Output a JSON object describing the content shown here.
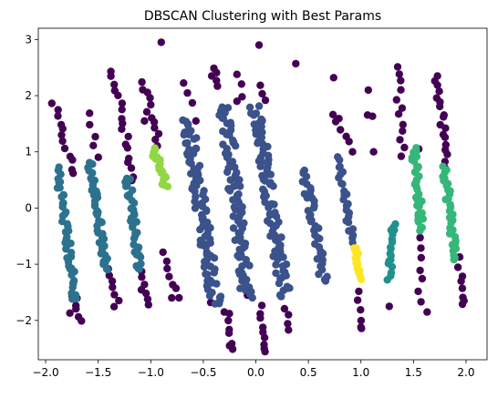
{
  "chart_data": {
    "type": "scatter",
    "title": "DBSCAN Clustering with Best Params",
    "xlabel": "",
    "ylabel": "",
    "xlim": [
      -2.07,
      2.2
    ],
    "ylim": [
      -2.7,
      3.2
    ],
    "xticks": [
      -2.0,
      -1.5,
      -1.0,
      -0.5,
      0.0,
      0.5,
      1.0,
      1.5,
      2.0
    ],
    "xtick_labels": [
      "−2.0",
      "−1.5",
      "−1.0",
      "−0.5",
      "0.0",
      "0.5",
      "1.0",
      "1.5",
      "2.0"
    ],
    "yticks": [
      -2,
      -1,
      0,
      1,
      2,
      3
    ],
    "ytick_labels": [
      "−2",
      "−1",
      "0",
      "1",
      "2",
      "3"
    ],
    "grid": false,
    "legend": false,
    "colormap": "viridis",
    "colors": {
      "noise": "#440154",
      "cluster_purple": "#3b528b",
      "cluster_teal": "#2c728e",
      "cluster_teal_light": "#21918c",
      "cluster_green": "#35b779",
      "cluster_lime": "#90d743",
      "cluster_yellow": "#fde725"
    },
    "series": [
      {
        "color": "#440154",
        "stripes": [
          {
            "x_top": -1.93,
            "x_bottom": -1.73,
            "y_top": 1.85,
            "y_bottom": 0.6,
            "n": 12,
            "jitter": 0.03
          },
          {
            "x_top": -1.74,
            "x_bottom": -1.66,
            "y_top": -1.55,
            "y_bottom": -2.0,
            "n": 6,
            "jitter": 0.03
          },
          {
            "x_top": -1.58,
            "x_bottom": -1.52,
            "y_top": 1.65,
            "y_bottom": 0.9,
            "n": 5,
            "jitter": 0.03
          },
          {
            "x_top": -1.38,
            "x_bottom": -1.32,
            "y_top": -1.1,
            "y_bottom": -1.75,
            "n": 7,
            "jitter": 0.03
          },
          {
            "x_top": -1.35,
            "x_bottom": -1.18,
            "y_top": 2.45,
            "y_bottom": 0.45,
            "n": 18,
            "jitter": 0.04
          },
          {
            "x_top": -1.12,
            "x_bottom": -1.04,
            "y_top": -1.05,
            "y_bottom": -1.7,
            "n": 8,
            "jitter": 0.03
          },
          {
            "x_top": -1.08,
            "x_bottom": -0.92,
            "y_top": 2.25,
            "y_bottom": 1.1,
            "n": 12,
            "jitter": 0.03
          },
          {
            "x_top": -0.88,
            "x_bottom": -0.75,
            "y_top": -0.8,
            "y_bottom": -1.6,
            "n": 7,
            "jitter": 0.03
          },
          {
            "x_top": -0.68,
            "x_bottom": -0.62,
            "y_top": 2.2,
            "y_bottom": 1.9,
            "n": 3,
            "jitter": 0.02
          },
          {
            "x_top": -0.38,
            "x_bottom": -0.35,
            "y_top": 2.5,
            "y_bottom": 2.2,
            "n": 4,
            "jitter": 0.02
          },
          {
            "x_top": -0.26,
            "x_bottom": -0.24,
            "y_top": -1.9,
            "y_bottom": -2.5,
            "n": 6,
            "jitter": 0.02
          },
          {
            "x_top": -0.17,
            "x_bottom": -0.14,
            "y_top": 2.4,
            "y_bottom": 2.0,
            "n": 3,
            "jitter": 0.02
          },
          {
            "x_top": 0.03,
            "x_bottom": 0.09,
            "y_top": 2.2,
            "y_bottom": 1.9,
            "n": 3,
            "jitter": 0.02
          },
          {
            "x_top": 0.05,
            "x_bottom": 0.09,
            "y_top": -1.75,
            "y_bottom": -2.55,
            "n": 8,
            "jitter": 0.02
          },
          {
            "x_top": 0.28,
            "x_bottom": 0.32,
            "y_top": -1.8,
            "y_bottom": -2.2,
            "n": 4,
            "jitter": 0.02
          },
          {
            "x_top": 0.74,
            "x_bottom": 0.86,
            "y_top": 1.7,
            "y_bottom": 1.2,
            "n": 6,
            "jitter": 0.03
          },
          {
            "x_top": 0.96,
            "x_bottom": 1.0,
            "y_top": -1.5,
            "y_bottom": -2.15,
            "n": 5,
            "jitter": 0.02
          },
          {
            "x_top": 1.08,
            "x_bottom": 1.1,
            "y_top": 1.65,
            "y_bottom": 1.6,
            "n": 2,
            "jitter": 0.02
          },
          {
            "x_top": 1.34,
            "x_bottom": 1.4,
            "y_top": 2.55,
            "y_bottom": 0.9,
            "n": 12,
            "jitter": 0.03
          },
          {
            "x_top": 1.58,
            "x_bottom": 1.56,
            "y_top": -0.5,
            "y_bottom": -1.65,
            "n": 7,
            "jitter": 0.02
          },
          {
            "x_top": 1.72,
            "x_bottom": 1.82,
            "y_top": 2.35,
            "y_bottom": 0.75,
            "n": 18,
            "jitter": 0.03
          },
          {
            "x_top": 1.94,
            "x_bottom": 1.96,
            "y_top": -0.9,
            "y_bottom": -1.75,
            "n": 7,
            "jitter": 0.02
          }
        ],
        "points": [
          {
            "x": -0.9,
            "y": 2.95
          },
          {
            "x": 0.03,
            "y": 2.9
          },
          {
            "x": 0.38,
            "y": 2.57
          },
          {
            "x": 0.74,
            "y": 2.32
          },
          {
            "x": 1.07,
            "y": 2.1
          },
          {
            "x": -1.06,
            "y": 1.55
          },
          {
            "x": -1.77,
            "y": -1.87
          },
          {
            "x": -0.43,
            "y": -1.68
          },
          {
            "x": -0.08,
            "y": -1.55
          },
          {
            "x": -0.25,
            "y": -2.45
          },
          {
            "x": 0.08,
            "y": -2.5
          },
          {
            "x": 1.27,
            "y": -1.75
          },
          {
            "x": 1.63,
            "y": -1.85
          },
          {
            "x": 1.98,
            "y": -1.65
          },
          {
            "x": -0.42,
            "y": 2.35
          },
          {
            "x": -0.57,
            "y": 1.55
          },
          {
            "x": -0.18,
            "y": 1.9
          },
          {
            "x": 0.06,
            "y": 1.55
          },
          {
            "x": 0.92,
            "y": 1.0
          },
          {
            "x": 1.12,
            "y": 1.0
          },
          {
            "x": 1.55,
            "y": 1.05
          },
          {
            "x": -0.8,
            "y": -1.6
          },
          {
            "x": -0.3,
            "y": -1.85
          },
          {
            "x": 1.0,
            "y": -2.12
          }
        ]
      },
      {
        "color": "#3b528b",
        "stripes": [
          {
            "x_top": -0.65,
            "x_bottom": -0.38,
            "y_top": 1.55,
            "y_bottom": -1.7,
            "n": 95,
            "jitter": 0.06
          },
          {
            "x_top": -0.3,
            "x_bottom": -0.08,
            "y_top": 1.8,
            "y_bottom": -1.6,
            "n": 90,
            "jitter": 0.06
          },
          {
            "x_top": 0.0,
            "x_bottom": 0.28,
            "y_top": 1.8,
            "y_bottom": -1.55,
            "n": 90,
            "jitter": 0.06
          },
          {
            "x_top": 0.46,
            "x_bottom": 0.65,
            "y_top": 0.7,
            "y_bottom": -1.3,
            "n": 40,
            "jitter": 0.04
          },
          {
            "x_top": 0.78,
            "x_bottom": 0.92,
            "y_top": 0.9,
            "y_bottom": -0.6,
            "n": 25,
            "jitter": 0.03
          }
        ],
        "points": []
      },
      {
        "color": "#2c728e",
        "stripes": [
          {
            "x_top": -1.88,
            "x_bottom": -1.72,
            "y_top": 0.7,
            "y_bottom": -1.65,
            "n": 45,
            "jitter": 0.03
          },
          {
            "x_top": -1.58,
            "x_bottom": -1.42,
            "y_top": 0.8,
            "y_bottom": -1.1,
            "n": 45,
            "jitter": 0.03
          },
          {
            "x_top": -1.22,
            "x_bottom": -1.1,
            "y_top": 0.55,
            "y_bottom": -1.1,
            "n": 35,
            "jitter": 0.03
          }
        ],
        "points": []
      },
      {
        "color": "#21918c",
        "stripes": [
          {
            "x_top": 1.31,
            "x_bottom": 1.27,
            "y_top": -0.25,
            "y_bottom": -1.25,
            "n": 18,
            "jitter": 0.02
          }
        ],
        "points": []
      },
      {
        "color": "#35b779",
        "stripes": [
          {
            "x_top": 1.5,
            "x_bottom": 1.58,
            "y_top": 1.05,
            "y_bottom": -0.4,
            "n": 35,
            "jitter": 0.03
          },
          {
            "x_top": 1.8,
            "x_bottom": 1.9,
            "y_top": 0.7,
            "y_bottom": -0.9,
            "n": 35,
            "jitter": 0.03
          }
        ],
        "points": []
      },
      {
        "color": "#90d743",
        "stripes": [
          {
            "x_top": -0.98,
            "x_bottom": -0.85,
            "y_top": 1.05,
            "y_bottom": 0.4,
            "n": 22,
            "jitter": 0.03
          }
        ],
        "points": []
      },
      {
        "color": "#fde725",
        "stripes": [
          {
            "x_top": 0.95,
            "x_bottom": 0.99,
            "y_top": -0.7,
            "y_bottom": -1.25,
            "n": 18,
            "jitter": 0.02
          }
        ],
        "points": []
      }
    ]
  }
}
